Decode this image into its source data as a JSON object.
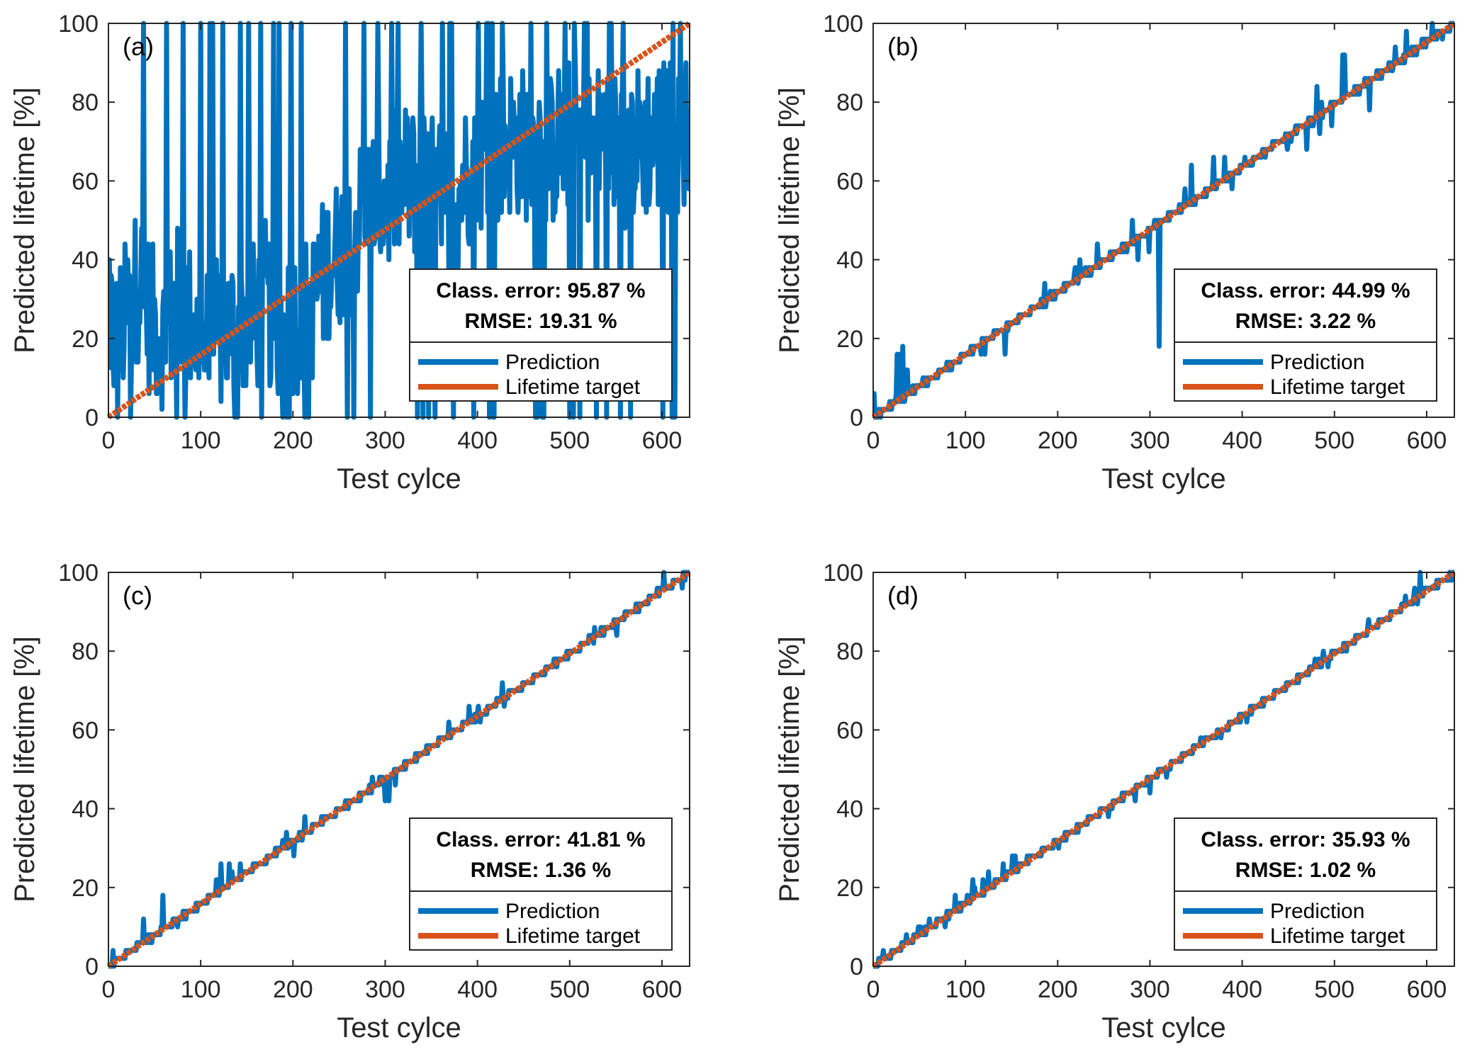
{
  "figure": {
    "colors": {
      "prediction": "#0072BD",
      "target": "#D95319",
      "axis": "#262626",
      "legend_border": "#262626"
    },
    "legend_entries": [
      "Prediction",
      "Lifetime target"
    ]
  },
  "chart_data": [
    {
      "type": "line",
      "panel_label": "(a)",
      "title": "",
      "xlabel": "Test cylce",
      "ylabel": "Predicted lifetime [%]",
      "xlim": [
        0,
        630
      ],
      "ylim": [
        0,
        100
      ],
      "xticks": [
        0,
        100,
        200,
        300,
        400,
        500,
        600
      ],
      "yticks": [
        0,
        20,
        40,
        60,
        80,
        100
      ],
      "grid": false,
      "legend_placement": "lower-right",
      "metrics": {
        "class_error": "Class. error: 95.87 %",
        "rmse": "RMSE: 19.31 %"
      },
      "series": [
        {
          "name": "Prediction",
          "color": "#0072BD",
          "noise_level": "high",
          "x": [
            0,
            15,
            25,
            35,
            45,
            60,
            75,
            90,
            100,
            110,
            130,
            145,
            160,
            170,
            180,
            200,
            220,
            240,
            260,
            280,
            300,
            320,
            340,
            360,
            380,
            400,
            420,
            440,
            460,
            480,
            500,
            520,
            540,
            560,
            580,
            600,
            620,
            630
          ],
          "y": [
            20,
            22,
            30,
            35,
            25,
            20,
            30,
            25,
            18,
            20,
            22,
            24,
            25,
            30,
            23,
            25,
            28,
            40,
            45,
            55,
            55,
            60,
            60,
            55,
            58,
            65,
            68,
            70,
            70,
            68,
            72,
            70,
            70,
            68,
            70,
            72,
            70,
            75
          ]
        },
        {
          "name": "Lifetime target",
          "color": "#D95319",
          "x": [
            0,
            630
          ],
          "y": [
            0,
            100
          ]
        }
      ]
    },
    {
      "type": "line",
      "panel_label": "(b)",
      "title": "",
      "xlabel": "Test cylce",
      "ylabel": "Predicted lifetime [%]",
      "xlim": [
        0,
        630
      ],
      "ylim": [
        0,
        100
      ],
      "xticks": [
        0,
        100,
        200,
        300,
        400,
        500,
        600
      ],
      "yticks": [
        0,
        20,
        40,
        60,
        80,
        100
      ],
      "grid": false,
      "legend_placement": "lower-right",
      "metrics": {
        "class_error": "Class. error: 44.99 %",
        "rmse": "RMSE: 3.22 %"
      },
      "series": [
        {
          "name": "Prediction",
          "color": "#0072BD",
          "noise_level": "medium",
          "x": [
            0,
            30,
            50,
            70,
            90,
            100,
            150,
            200,
            250,
            300,
            305,
            310,
            320,
            340,
            360,
            400,
            450,
            490,
            500,
            520,
            540,
            560,
            600,
            630
          ],
          "y": [
            0,
            14,
            12,
            10,
            15,
            16,
            24,
            33,
            40,
            45,
            30,
            25,
            50,
            58,
            63,
            64,
            70,
            80,
            90,
            85,
            88,
            90,
            98,
            100
          ]
        },
        {
          "name": "Lifetime target",
          "color": "#D95319",
          "x": [
            0,
            630
          ],
          "y": [
            0,
            100
          ]
        }
      ]
    },
    {
      "type": "line",
      "panel_label": "(c)",
      "title": "",
      "xlabel": "Test cylce",
      "ylabel": "Predicted lifetime [%]",
      "xlim": [
        0,
        630
      ],
      "ylim": [
        0,
        100
      ],
      "xticks": [
        0,
        100,
        200,
        300,
        400,
        500,
        600
      ],
      "yticks": [
        0,
        20,
        40,
        60,
        80,
        100
      ],
      "grid": false,
      "legend_placement": "lower-right",
      "metrics": {
        "class_error": "Class. error: 41.81 %",
        "rmse": "RMSE: 1.36 %"
      },
      "series": [
        {
          "name": "Prediction",
          "color": "#0072BD",
          "noise_level": "low",
          "x": [
            0,
            65,
            90,
            120,
            200,
            265,
            305,
            370,
            480,
            510,
            545,
            600,
            630
          ],
          "y": [
            0,
            17,
            12,
            24,
            36,
            47,
            44,
            62,
            80,
            79,
            84,
            99,
            100
          ]
        },
        {
          "name": "Lifetime target",
          "color": "#D95319",
          "x": [
            0,
            630
          ],
          "y": [
            0,
            100
          ]
        }
      ]
    },
    {
      "type": "line",
      "panel_label": "(d)",
      "title": "",
      "xlabel": "Test cylce",
      "ylabel": "Predicted lifetime [%]",
      "xlim": [
        0,
        630
      ],
      "ylim": [
        0,
        100
      ],
      "xticks": [
        0,
        100,
        200,
        300,
        400,
        500,
        600
      ],
      "yticks": [
        0,
        20,
        40,
        60,
        80,
        100
      ],
      "grid": false,
      "legend_placement": "lower-right",
      "metrics": {
        "class_error": "Class. error: 35.93 %",
        "rmse": "RMSE: 1.02 %"
      },
      "series": [
        {
          "name": "Prediction",
          "color": "#0072BD",
          "noise_level": "very-low",
          "x": [
            0,
            50,
            90,
            120,
            225,
            300,
            310,
            400,
            500,
            580,
            600,
            630
          ],
          "y": [
            0,
            11,
            17,
            24,
            35,
            44,
            48,
            64,
            80,
            93,
            99,
            100
          ]
        },
        {
          "name": "Lifetime target",
          "color": "#D95319",
          "x": [
            0,
            630
          ],
          "y": [
            0,
            100
          ]
        }
      ]
    }
  ]
}
